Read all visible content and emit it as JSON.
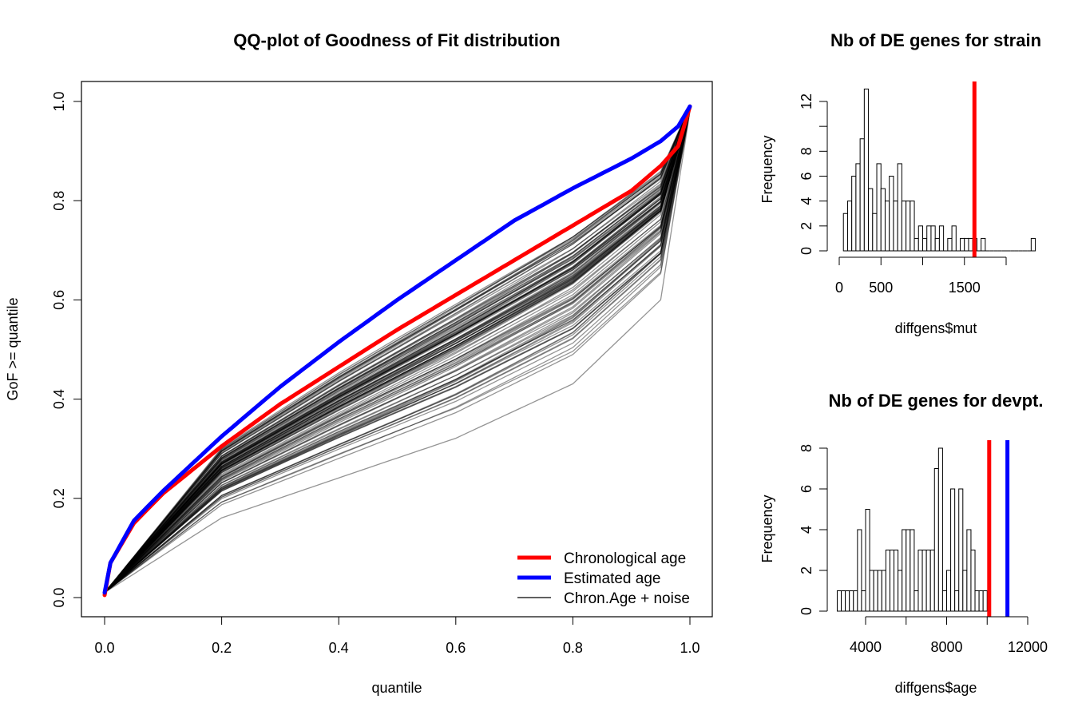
{
  "chart_data": [
    {
      "type": "line",
      "title": "QQ-plot of Goodness of Fit distribution",
      "xlabel": "quantile",
      "ylabel": "GoF >= quantile",
      "xlim": [
        0,
        1
      ],
      "ylim": [
        0,
        1
      ],
      "xticks": [
        "0.0",
        "0.2",
        "0.4",
        "0.6",
        "0.8",
        "1.0"
      ],
      "yticks": [
        "0.0",
        "0.2",
        "0.4",
        "0.6",
        "0.8",
        "1.0"
      ],
      "legend_position": "bottom-right",
      "series": [
        {
          "name": "Chronological age",
          "color": "#ff0000",
          "x": [
            0,
            0.01,
            0.05,
            0.1,
            0.2,
            0.3,
            0.4,
            0.5,
            0.6,
            0.7,
            0.8,
            0.9,
            0.95,
            0.98,
            1.0
          ],
          "y": [
            0.005,
            0.07,
            0.15,
            0.21,
            0.305,
            0.39,
            0.465,
            0.54,
            0.61,
            0.68,
            0.75,
            0.82,
            0.87,
            0.91,
            0.99
          ]
        },
        {
          "name": "Estimated age",
          "color": "#0000ff",
          "x": [
            0,
            0.01,
            0.05,
            0.1,
            0.2,
            0.3,
            0.4,
            0.5,
            0.6,
            0.7,
            0.8,
            0.9,
            0.95,
            0.98,
            1.0
          ],
          "y": [
            0.01,
            0.07,
            0.155,
            0.215,
            0.325,
            0.425,
            0.515,
            0.6,
            0.68,
            0.76,
            0.825,
            0.885,
            0.92,
            0.95,
            0.99
          ]
        },
        {
          "name": "Chron.Age + noise",
          "color": "#000000",
          "representative_range_y_at_x": {
            "x": [
              0,
              0.2,
              0.4,
              0.6,
              0.8,
              0.95,
              1.0
            ],
            "y_min": [
              0.01,
              0.16,
              0.24,
              0.32,
              0.43,
              0.6,
              0.98
            ],
            "y_max": [
              0.01,
              0.3,
              0.45,
              0.59,
              0.73,
              0.86,
              0.99
            ]
          }
        }
      ]
    },
    {
      "type": "bar",
      "title": "Nb of DE genes for strain",
      "xlabel": "diffgens$mut",
      "ylabel": "Frequency",
      "xticks": [
        "0",
        "500",
        "1500"
      ],
      "yticks": [
        "0",
        "2",
        "4",
        "6",
        "8",
        "12"
      ],
      "bin_width": 50,
      "bin_start": 50,
      "values": [
        3,
        4,
        6,
        7,
        9,
        13,
        5,
        3,
        7,
        5,
        4,
        6,
        4,
        7,
        4,
        4,
        4,
        1,
        2,
        1,
        2,
        2,
        1,
        2,
        0,
        1,
        2,
        0,
        1,
        1,
        1,
        1,
        0,
        1,
        0,
        0,
        0,
        0,
        0,
        0,
        0,
        0,
        0,
        0,
        0,
        1
      ],
      "vlines": [
        {
          "x": 1620,
          "color": "#ff0000"
        }
      ]
    },
    {
      "type": "bar",
      "title": "Nb of DE genes for devpt.",
      "xlabel": "diffgens$age",
      "ylabel": "Frequency",
      "xticks": [
        "4000",
        "8000",
        "12000"
      ],
      "yticks": [
        "0",
        "2",
        "4",
        "6",
        "8"
      ],
      "bin_width": 200,
      "bin_start": 2600,
      "values": [
        1,
        1,
        1,
        1,
        1,
        4,
        1,
        5,
        2,
        2,
        2,
        2,
        3,
        3,
        3,
        2,
        4,
        4,
        4,
        1,
        3,
        3,
        3,
        3,
        7,
        8,
        1,
        2,
        6,
        1,
        6,
        2,
        4,
        3,
        1,
        1,
        1
      ],
      "vlines": [
        {
          "x": 10100,
          "color": "#ff0000"
        },
        {
          "x": 11000,
          "color": "#0000ff"
        }
      ]
    }
  ]
}
